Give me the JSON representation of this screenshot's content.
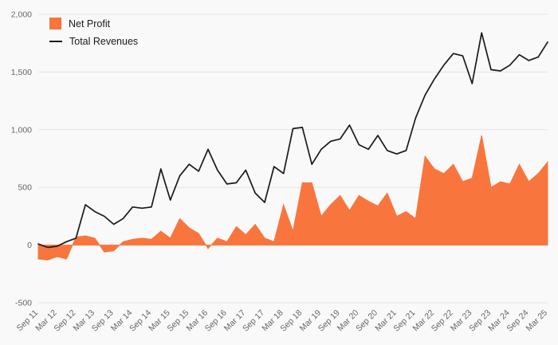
{
  "chart_data": {
    "type": "line",
    "title": "",
    "xlabel": "",
    "ylabel": "",
    "ylim": [
      -500,
      2000
    ],
    "yticks": [
      -500,
      0,
      500,
      1000,
      1500,
      2000
    ],
    "ytick_labels": [
      "-500",
      "0",
      "500",
      "1,000",
      "1,500",
      "2,000"
    ],
    "x_tick_labels": [
      "Sep 11",
      "Mar 12",
      "Sep 12",
      "Mar 13",
      "Sep 13",
      "Mar 14",
      "Sep 14",
      "Mar 15",
      "Sep 15",
      "Mar 16",
      "Sep 16",
      "Mar 17",
      "Sep 17",
      "Mar 18",
      "Sep 18",
      "Mar 19",
      "Sep 19",
      "Mar 20",
      "Sep 20",
      "Mar 21",
      "Sep 21",
      "Mar 22",
      "Sep 22",
      "Mar 23",
      "Sep 23",
      "Mar 24",
      "Sep 24",
      "Mar 25"
    ],
    "points_per_tick": 2,
    "grid": true,
    "legend_position": "top-left",
    "background": "#f9f9f9",
    "grid_color": "#e3e3e3",
    "tick_color": "#666666",
    "series": [
      {
        "name": "Net Profit",
        "type": "area",
        "color": "#f8763d",
        "values": [
          -120,
          -130,
          -100,
          -120,
          70,
          80,
          60,
          -60,
          -50,
          30,
          50,
          60,
          50,
          120,
          60,
          230,
          150,
          100,
          -30,
          60,
          30,
          160,
          90,
          180,
          60,
          30,
          350,
          120,
          540,
          540,
          250,
          350,
          430,
          300,
          430,
          380,
          340,
          450,
          250,
          290,
          230,
          770,
          660,
          620,
          700,
          550,
          580,
          950,
          500,
          550,
          530,
          700,
          550,
          620,
          720
        ]
      },
      {
        "name": "Total Revenues",
        "type": "line",
        "color": "#1a1a1a",
        "values": [
          10,
          -20,
          -10,
          30,
          60,
          350,
          290,
          250,
          180,
          230,
          330,
          320,
          330,
          660,
          390,
          600,
          700,
          640,
          830,
          650,
          530,
          540,
          650,
          450,
          370,
          680,
          620,
          1010,
          1020,
          700,
          830,
          900,
          920,
          1040,
          870,
          830,
          950,
          820,
          790,
          820,
          1100,
          1300,
          1440,
          1560,
          1660,
          1640,
          1400,
          1840,
          1520,
          1510,
          1560,
          1650,
          1600,
          1630,
          1760
        ]
      }
    ]
  }
}
